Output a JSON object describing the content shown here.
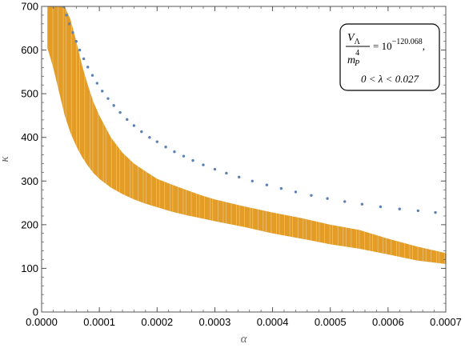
{
  "chart_data": {
    "type": "scatter",
    "title": "",
    "xlabel": "α",
    "ylabel": "κ",
    "xlim": [
      0,
      0.0007
    ],
    "ylim": [
      0,
      700
    ],
    "x_ticks": [
      {
        "value": 0,
        "label": "0.0000"
      },
      {
        "value": 0.0001,
        "label": "0.0001"
      },
      {
        "value": 0.0002,
        "label": "0.0002"
      },
      {
        "value": 0.0003,
        "label": "0.0003"
      },
      {
        "value": 0.0004,
        "label": "0.0004"
      },
      {
        "value": 0.0005,
        "label": "0.0005"
      },
      {
        "value": 0.0006,
        "label": "0.0006"
      },
      {
        "value": 0.0007,
        "label": "0.0007"
      }
    ],
    "y_ticks": [
      {
        "value": 0,
        "label": "0"
      },
      {
        "value": 100,
        "label": "100"
      },
      {
        "value": 200,
        "label": "200"
      },
      {
        "value": 300,
        "label": "300"
      },
      {
        "value": 400,
        "label": "400"
      },
      {
        "value": 500,
        "label": "500"
      },
      {
        "value": 600,
        "label": "600"
      },
      {
        "value": 700,
        "label": "700"
      }
    ],
    "grid": false,
    "annotation": {
      "line1_lhs_numerator": "V",
      "line1_lhs_numerator_sub": "Λ",
      "line1_lhs_denominator": "m",
      "line1_lhs_denominator_sub": "P",
      "line1_lhs_denominator_sup": "4",
      "line1_rhs": "= 10",
      "line1_rhs_exponent": "−120.068",
      "line1_trailing": ",",
      "line2": "0 < λ < 0.027",
      "position": "top-right"
    },
    "series": [
      {
        "color": "#E39D26",
        "style": "filled-region",
        "band": [
          {
            "x": 1e-05,
            "ymin": 605,
            "ymax": 700
          },
          {
            "x": 2e-05,
            "ymin": 560,
            "ymax": 700
          },
          {
            "x": 3e-05,
            "ymin": 505,
            "ymax": 700
          },
          {
            "x": 4e-05,
            "ymin": 450,
            "ymax": 700
          },
          {
            "x": 5e-05,
            "ymin": 410,
            "ymax": 670
          },
          {
            "x": 6e-05,
            "ymin": 380,
            "ymax": 620
          },
          {
            "x": 7e-05,
            "ymin": 355,
            "ymax": 565
          },
          {
            "x": 8e-05,
            "ymin": 335,
            "ymax": 520
          },
          {
            "x": 9e-05,
            "ymin": 318,
            "ymax": 480
          },
          {
            "x": 0.0001,
            "ymin": 305,
            "ymax": 450
          },
          {
            "x": 0.00012,
            "ymin": 285,
            "ymax": 400
          },
          {
            "x": 0.00014,
            "ymin": 270,
            "ymax": 365
          },
          {
            "x": 0.00016,
            "ymin": 258,
            "ymax": 340
          },
          {
            "x": 0.00018,
            "ymin": 248,
            "ymax": 322
          },
          {
            "x": 0.0002,
            "ymin": 240,
            "ymax": 305
          },
          {
            "x": 0.000225,
            "ymin": 230,
            "ymax": 292
          },
          {
            "x": 0.00025,
            "ymin": 222,
            "ymax": 280
          },
          {
            "x": 0.000275,
            "ymin": 215,
            "ymax": 268
          },
          {
            "x": 0.0003,
            "ymin": 208,
            "ymax": 258
          },
          {
            "x": 0.00035,
            "ymin": 195,
            "ymax": 242
          },
          {
            "x": 0.0004,
            "ymin": 180,
            "ymax": 228
          },
          {
            "x": 0.00045,
            "ymin": 168,
            "ymax": 215
          },
          {
            "x": 0.0005,
            "ymin": 155,
            "ymax": 200
          },
          {
            "x": 0.00055,
            "ymin": 145,
            "ymax": 188
          },
          {
            "x": 0.0006,
            "ymin": 132,
            "ymax": 168
          },
          {
            "x": 0.00065,
            "ymin": 118,
            "ymax": 150
          },
          {
            "x": 0.0007,
            "ymin": 110,
            "ymax": 135
          }
        ]
      },
      {
        "color": "#5E81B5",
        "style": "points",
        "points": [
          {
            "x": 3.8e-05,
            "y": 700
          },
          {
            "x": 4.3e-05,
            "y": 680
          },
          {
            "x": 4.8e-05,
            "y": 660
          },
          {
            "x": 5.4e-05,
            "y": 640
          },
          {
            "x": 6e-05,
            "y": 620
          },
          {
            "x": 6.6e-05,
            "y": 600
          },
          {
            "x": 7.3e-05,
            "y": 580
          },
          {
            "x": 8e-05,
            "y": 561
          },
          {
            "x": 8.8e-05,
            "y": 542
          },
          {
            "x": 9.6e-05,
            "y": 524
          },
          {
            "x": 0.000105,
            "y": 506
          },
          {
            "x": 0.000115,
            "y": 489
          },
          {
            "x": 0.000125,
            "y": 473
          },
          {
            "x": 0.000136,
            "y": 457
          },
          {
            "x": 0.000148,
            "y": 441
          },
          {
            "x": 0.00016,
            "y": 427
          },
          {
            "x": 0.000173,
            "y": 413
          },
          {
            "x": 0.000187,
            "y": 400
          },
          {
            "x": 0.0002,
            "y": 390
          },
          {
            "x": 0.000215,
            "y": 378
          },
          {
            "x": 0.00023,
            "y": 367
          },
          {
            "x": 0.000246,
            "y": 357
          },
          {
            "x": 0.000262,
            "y": 347
          },
          {
            "x": 0.00028,
            "y": 337
          },
          {
            "x": 0.0003,
            "y": 327
          },
          {
            "x": 0.00032,
            "y": 318
          },
          {
            "x": 0.000342,
            "y": 309
          },
          {
            "x": 0.000365,
            "y": 300
          },
          {
            "x": 0.00039,
            "y": 291
          },
          {
            "x": 0.000415,
            "y": 283
          },
          {
            "x": 0.00044,
            "y": 275
          },
          {
            "x": 0.000467,
            "y": 267
          },
          {
            "x": 0.000495,
            "y": 260
          },
          {
            "x": 0.000525,
            "y": 253
          },
          {
            "x": 0.000555,
            "y": 247
          },
          {
            "x": 0.000587,
            "y": 241
          },
          {
            "x": 0.00062,
            "y": 236
          },
          {
            "x": 0.000652,
            "y": 232
          },
          {
            "x": 0.000682,
            "y": 228
          }
        ]
      }
    ]
  }
}
